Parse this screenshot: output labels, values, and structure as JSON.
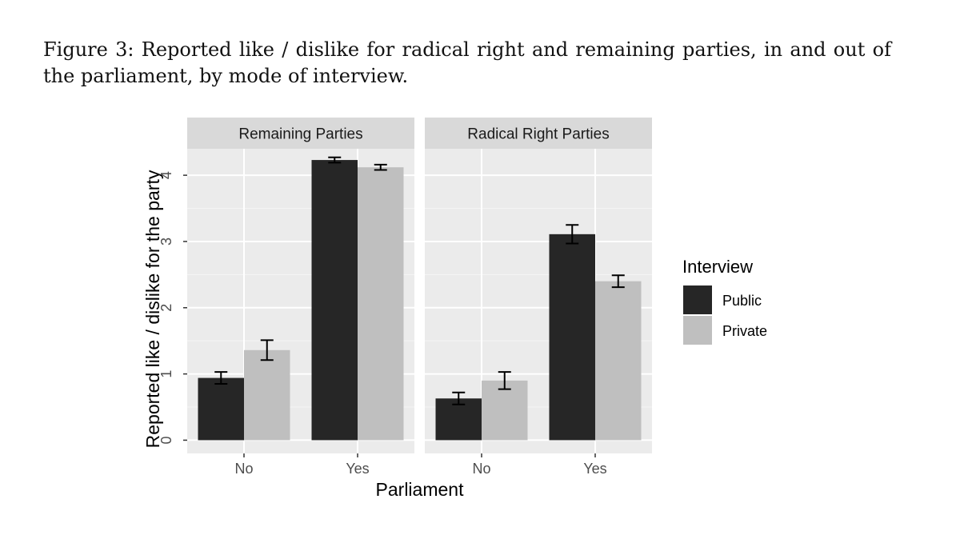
{
  "figure": {
    "caption": "Figure 3: Reported like / dislike for radical right and remaining parties, in and out of the parliament, by mode of interview."
  },
  "chart_data": {
    "type": "bar",
    "facets": [
      "Remaining Parties",
      "Radical Right Parties"
    ],
    "categories": [
      "No",
      "Yes"
    ],
    "xlabel": "Parliament",
    "ylabel": "Reported like / dislike for the party",
    "ylim": [
      -0.2,
      4.4
    ],
    "yticks": [
      0,
      1,
      2,
      3,
      4
    ],
    "grid": true,
    "legend": {
      "title": "Interview",
      "position": "right"
    },
    "series": [
      {
        "name": "Public",
        "color": "#262626",
        "values": [
          [
            0.94,
            4.23
          ],
          [
            0.63,
            3.11
          ]
        ],
        "errors": [
          [
            0.09,
            0.04
          ],
          [
            0.09,
            0.14
          ]
        ]
      },
      {
        "name": "Private",
        "color": "#bfbfbf",
        "values": [
          [
            1.36,
            4.12
          ],
          [
            0.9,
            2.4
          ]
        ],
        "errors": [
          [
            0.15,
            0.04
          ],
          [
            0.13,
            0.09
          ]
        ]
      }
    ]
  }
}
